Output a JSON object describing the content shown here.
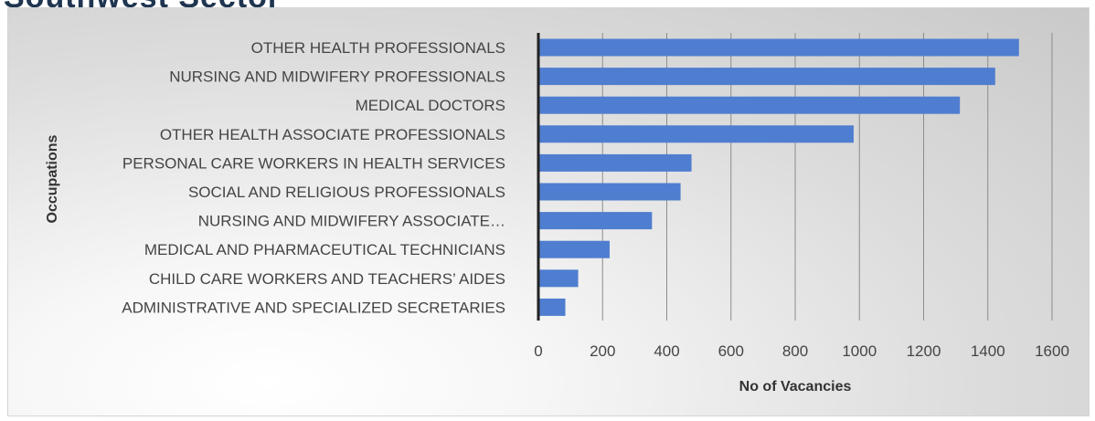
{
  "header": {
    "partial_title": "Southwest Sector"
  },
  "chart_data": {
    "type": "bar",
    "orientation": "horizontal",
    "categories": [
      "OTHER HEALTH PROFESSIONALS",
      "NURSING AND MIDWIFERY PROFESSIONALS",
      "MEDICAL DOCTORS",
      "OTHER HEALTH ASSOCIATE PROFESSIONALS",
      "PERSONAL CARE WORKERS IN HEALTH SERVICES",
      "SOCIAL AND RELIGIOUS PROFESSIONALS",
      "NURSING AND MIDWIFERY ASSOCIATE…",
      "MEDICAL AND PHARMACEUTICAL TECHNICIANS",
      "CHILD CARE WORKERS AND TEACHERS’ AIDES",
      "ADMINISTRATIVE AND SPECIALIZED SECRETARIES"
    ],
    "values": [
      1497,
      1423,
      1313,
      982,
      477,
      443,
      354,
      222,
      124,
      84
    ],
    "title": "",
    "xlabel": "No of Vacancies",
    "ylabel": "Occupations",
    "xlim": [
      0,
      1600
    ],
    "xticks": [
      "0",
      "200",
      "400",
      "600",
      "800",
      "1000",
      "1200",
      "1400",
      "1600"
    ],
    "grid": true,
    "legend": "none",
    "bar_color": "#4f7ed0"
  }
}
